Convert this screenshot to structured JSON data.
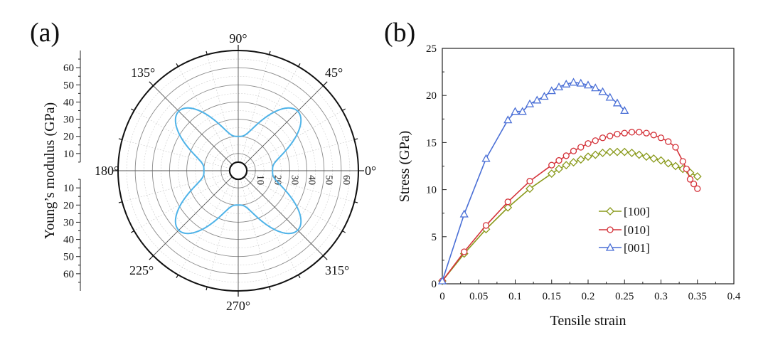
{
  "chart_data": [
    {
      "type": "polar",
      "panel_label": "(a)",
      "ylabel": "Young’s modulus (GPa)",
      "r_range": [
        0,
        70
      ],
      "r_ticks": [
        10,
        20,
        30,
        40,
        50,
        60
      ],
      "r_tick_labels": [
        "10",
        "20",
        "30",
        "40",
        "50",
        "60"
      ],
      "angle_labels": [
        {
          "angle": 0,
          "text": "0°"
        },
        {
          "angle": 45,
          "text": "45°"
        },
        {
          "angle": 90,
          "text": "90°"
        },
        {
          "angle": 135,
          "text": "135°"
        },
        {
          "angle": 180,
          "text": "180°"
        },
        {
          "angle": 225,
          "text": "225°"
        },
        {
          "angle": 270,
          "text": "270°"
        },
        {
          "angle": 315,
          "text": "315°"
        }
      ],
      "series": [
        {
          "name": "Young's modulus",
          "color": "#4fb3e8",
          "curve": {
            "min": 20,
            "max": 49,
            "peak_angles": [
              45,
              135,
              225,
              315
            ]
          }
        }
      ]
    },
    {
      "type": "line",
      "panel_label": "(b)",
      "xlabel": "Tensile strain",
      "ylabel": "Stress (GPa)",
      "xlim": [
        0,
        0.4
      ],
      "ylim": [
        0,
        25
      ],
      "x_ticks": [
        0,
        0.05,
        0.1,
        0.15,
        0.2,
        0.25,
        0.3,
        0.35,
        0.4
      ],
      "x_tick_labels": [
        "0",
        "0.05",
        "0.1",
        "0.15",
        "0.2",
        "0.25",
        "0.3",
        "0.35",
        "0.4"
      ],
      "y_ticks": [
        0,
        5,
        10,
        15,
        20,
        25
      ],
      "y_tick_labels": [
        "0",
        "5",
        "10",
        "15",
        "20",
        "25"
      ],
      "legend_position": "lower-center",
      "series": [
        {
          "name": "[100]",
          "color": "#8a9a1c",
          "marker": "diamond",
          "x": [
            0,
            0.03,
            0.06,
            0.09,
            0.12,
            0.15,
            0.16,
            0.17,
            0.18,
            0.19,
            0.2,
            0.21,
            0.22,
            0.23,
            0.24,
            0.25,
            0.26,
            0.27,
            0.28,
            0.29,
            0.3,
            0.31,
            0.32,
            0.33,
            0.34,
            0.35
          ],
          "y": [
            0.3,
            3.2,
            5.8,
            8.1,
            10.1,
            11.7,
            12.2,
            12.6,
            12.9,
            13.2,
            13.5,
            13.7,
            13.9,
            14.0,
            14.0,
            14.0,
            13.9,
            13.7,
            13.5,
            13.3,
            13.1,
            12.8,
            12.5,
            12.2,
            11.8,
            11.4
          ]
        },
        {
          "name": "[010]",
          "color": "#d4333a",
          "marker": "circle",
          "x": [
            0,
            0.03,
            0.06,
            0.09,
            0.12,
            0.15,
            0.16,
            0.17,
            0.18,
            0.19,
            0.2,
            0.21,
            0.22,
            0.23,
            0.24,
            0.25,
            0.26,
            0.27,
            0.28,
            0.29,
            0.3,
            0.31,
            0.32,
            0.33,
            0.335,
            0.34,
            0.345,
            0.35
          ],
          "y": [
            0.3,
            3.4,
            6.2,
            8.7,
            10.9,
            12.6,
            13.1,
            13.6,
            14.1,
            14.5,
            14.9,
            15.2,
            15.5,
            15.7,
            15.9,
            16.0,
            16.1,
            16.1,
            16.0,
            15.8,
            15.5,
            15.1,
            14.5,
            13.0,
            12.2,
            11.1,
            10.6,
            10.1
          ]
        },
        {
          "name": "[001]",
          "color": "#4a6fd6",
          "marker": "triangle",
          "x": [
            0,
            0.03,
            0.06,
            0.09,
            0.1,
            0.11,
            0.12,
            0.13,
            0.14,
            0.15,
            0.16,
            0.17,
            0.18,
            0.19,
            0.2,
            0.21,
            0.22,
            0.23,
            0.24,
            0.25
          ],
          "y": [
            0.3,
            7.4,
            13.3,
            17.4,
            18.3,
            18.3,
            19.1,
            19.5,
            19.9,
            20.5,
            20.9,
            21.2,
            21.4,
            21.3,
            21.1,
            20.8,
            20.4,
            19.8,
            19.2,
            18.4
          ]
        }
      ]
    }
  ]
}
